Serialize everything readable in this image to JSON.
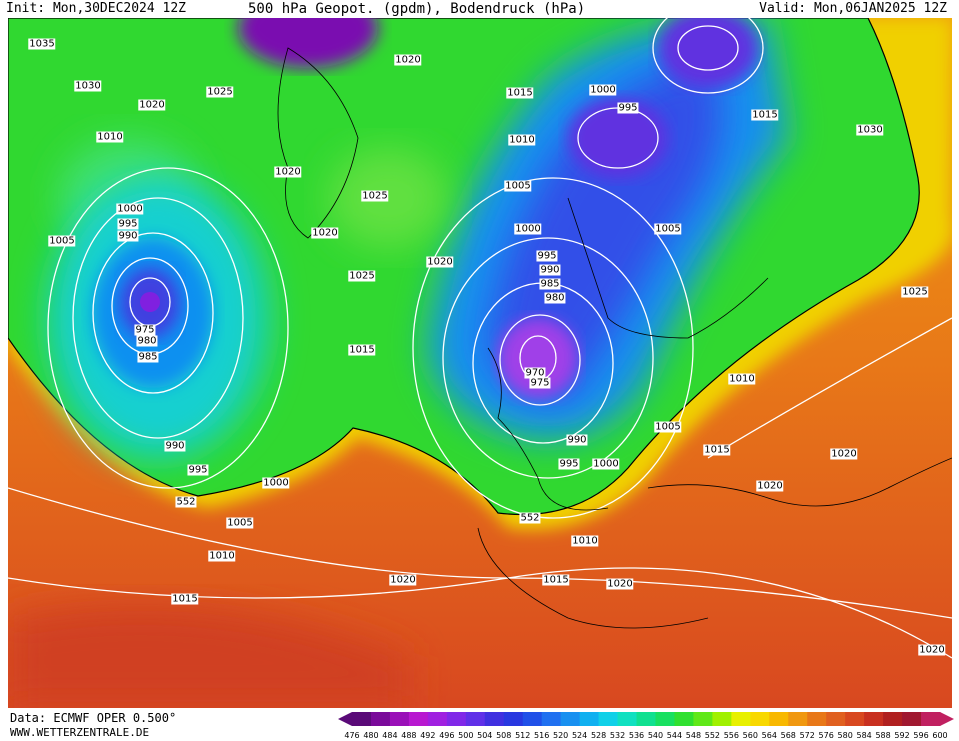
{
  "header": {
    "init": "Init: Mon,30DEC2024 12Z",
    "title": "500 hPa Geopot. (gpdm), Bodendruck (hPa)",
    "valid": "Valid: Mon,06JAN2025 12Z"
  },
  "isobar_labels": [
    "1035",
    "1030",
    "1020",
    "1025",
    "1010",
    "1020",
    "1015",
    "1010",
    "1005",
    "1000",
    "1000",
    "995",
    "1015",
    "1030",
    "1005",
    "1025",
    "1020",
    "1025",
    "1020",
    "1020",
    "1025",
    "1015",
    "1000",
    "995",
    "990",
    "1005",
    "975",
    "980",
    "985",
    "995",
    "990",
    "985",
    "980",
    "970",
    "975",
    "990",
    "995",
    "1000",
    "552",
    "1005",
    "1010",
    "1015",
    "1020",
    "1015",
    "1020",
    "1010",
    "552",
    "990",
    "995",
    "1000",
    "1005",
    "1015",
    "1010",
    "1020",
    "1020",
    "1020"
  ],
  "footer": {
    "data": "Data: ECMWF OPER 0.500°",
    "site": "WWW.WETTERZENTRALE.DE"
  },
  "colorbar": {
    "labels": [
      476,
      480,
      484,
      488,
      492,
      496,
      500,
      504,
      508,
      512,
      516,
      520,
      524,
      528,
      532,
      536,
      540,
      544,
      548,
      552,
      556,
      560,
      564,
      568,
      572,
      576,
      580,
      584,
      588,
      592,
      596,
      600
    ],
    "colors": [
      "#5a0a78",
      "#7a0a9a",
      "#9a10b8",
      "#b818d0",
      "#a020e0",
      "#8028e8",
      "#6030e8",
      "#4030e0",
      "#2838e0",
      "#2050e8",
      "#2070f0",
      "#1890f0",
      "#10b0f0",
      "#10d0e8",
      "#10e0c0",
      "#10e090",
      "#18e060",
      "#30e030",
      "#60e818",
      "#a0f000",
      "#e8f000",
      "#f8d800",
      "#f8b800",
      "#f09810",
      "#e87818",
      "#e06020",
      "#d84820",
      "#c83020",
      "#b02020",
      "#a01830",
      "#c02060"
    ]
  }
}
